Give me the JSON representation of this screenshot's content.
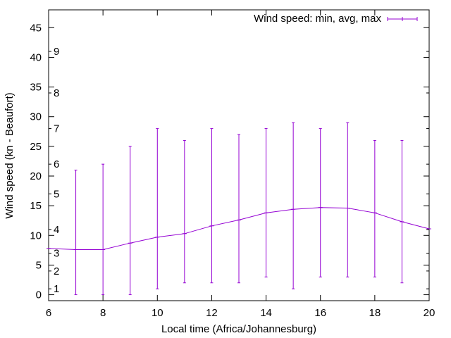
{
  "chart_data": {
    "type": "line",
    "title": "",
    "xlabel": "Local time (Africa/Johannesburg)",
    "ylabel": "Wind speed (kn - Beaufort)",
    "xlim": [
      6,
      20
    ],
    "ylim": [
      -1,
      48
    ],
    "x_ticks": [
      6,
      8,
      10,
      12,
      14,
      16,
      18,
      20
    ],
    "y_ticks": [
      0,
      5,
      10,
      15,
      20,
      25,
      30,
      35,
      40,
      45
    ],
    "grid": false,
    "legend": {
      "position": "top-right",
      "label": "Wind speed: min, avg, max"
    },
    "color": "#9400D3",
    "series": [
      {
        "name": "Wind speed: min, avg, max",
        "x": [
          6,
          7,
          8,
          9,
          10,
          11,
          12,
          13,
          14,
          15,
          16,
          17,
          18,
          19,
          20
        ],
        "avg": [
          7.8,
          7.6,
          7.6,
          8.7,
          9.7,
          10.3,
          11.6,
          12.6,
          13.8,
          14.4,
          14.7,
          14.6,
          13.8,
          12.3,
          11.1
        ],
        "min": [
          null,
          0,
          0,
          0,
          1,
          2,
          2,
          2,
          3,
          1,
          3,
          3,
          3,
          2,
          null
        ],
        "max": [
          null,
          21,
          22,
          25,
          28,
          26,
          28,
          27,
          28,
          29,
          28,
          29,
          26,
          26,
          null
        ]
      }
    ],
    "beaufort_scale": [
      {
        "label": "1",
        "kn": 1
      },
      {
        "label": "2",
        "kn": 4
      },
      {
        "label": "3",
        "kn": 7
      },
      {
        "label": "4",
        "kn": 11
      },
      {
        "label": "5",
        "kn": 17
      },
      {
        "label": "6",
        "kn": 22
      },
      {
        "label": "7",
        "kn": 28
      },
      {
        "label": "8",
        "kn": 34
      },
      {
        "label": "9",
        "kn": 41
      }
    ]
  }
}
